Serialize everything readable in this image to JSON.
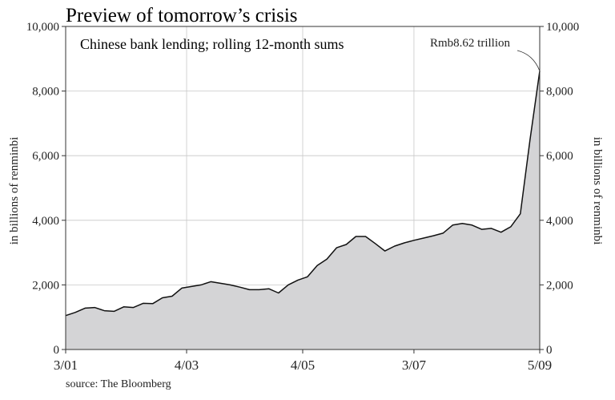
{
  "chart_data": {
    "type": "area",
    "title": "Preview of tomorrow’s crisis",
    "subtitle": "Chinese bank lending; rolling 12-month sums",
    "ylabel_left": "in billions of renminbi",
    "ylabel_right": "in billions of renminbi",
    "ylim": [
      0,
      10000
    ],
    "yticks": [
      0,
      2000,
      4000,
      6000,
      8000,
      10000
    ],
    "ytick_labels": [
      "0",
      "2,000",
      "4,000",
      "6,000",
      "8,000",
      "10,000"
    ],
    "xrange": [
      "2001-03",
      "2009-05"
    ],
    "xticks": [
      {
        "date": "2001-03",
        "label": "3/01"
      },
      {
        "date": "2003-04",
        "label": "4/03"
      },
      {
        "date": "2005-04",
        "label": "4/05"
      },
      {
        "date": "2007-03",
        "label": "3/07"
      },
      {
        "date": "2009-05",
        "label": "5/09"
      }
    ],
    "grid": true,
    "annotation": {
      "text": "Rmb8.62 trillion",
      "date": "2009-05",
      "value": 8620
    },
    "source": "source: The Bloomberg",
    "series": [
      {
        "x": [
          "2001-03",
          "2001-05",
          "2001-07",
          "2001-09",
          "2001-11",
          "2002-01",
          "2002-03",
          "2002-05",
          "2002-07",
          "2002-09",
          "2002-11",
          "2003-01",
          "2003-03",
          "2003-05",
          "2003-07",
          "2003-09",
          "2003-11",
          "2004-01",
          "2004-03",
          "2004-05",
          "2004-07",
          "2004-09",
          "2004-11",
          "2005-01",
          "2005-03",
          "2005-05",
          "2005-07",
          "2005-09",
          "2005-11",
          "2006-01",
          "2006-03",
          "2006-05",
          "2006-07",
          "2006-09",
          "2006-11",
          "2007-01",
          "2007-03",
          "2007-05",
          "2007-07",
          "2007-09",
          "2007-11",
          "2008-01",
          "2008-03",
          "2008-05",
          "2008-07",
          "2008-09",
          "2008-11",
          "2009-01",
          "2009-03",
          "2009-05"
        ],
        "values": [
          1050,
          1150,
          1280,
          1300,
          1200,
          1180,
          1320,
          1300,
          1430,
          1420,
          1600,
          1650,
          1900,
          1950,
          2000,
          2100,
          2050,
          2000,
          1930,
          1850,
          1850,
          1880,
          1750,
          2000,
          2150,
          2250,
          2600,
          2800,
          3150,
          3250,
          3500,
          3500,
          3280,
          3050,
          3200,
          3300,
          3380,
          3450,
          3520,
          3600,
          3850,
          3900,
          3850,
          3720,
          3750,
          3630,
          3800,
          4200,
          6500,
          8620
        ]
      }
    ]
  }
}
